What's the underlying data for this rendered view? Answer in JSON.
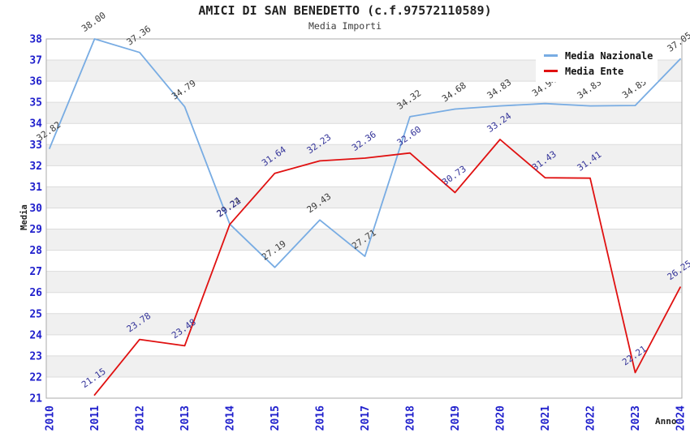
{
  "chart_data": {
    "type": "line",
    "title": "AMICI DI SAN BENEDETTO (c.f.97572110589)",
    "subtitle": "Media Importi",
    "xlabel": "Anno",
    "ylabel": "Media",
    "x": [
      2010,
      2011,
      2012,
      2013,
      2014,
      2015,
      2016,
      2017,
      2018,
      2019,
      2020,
      2021,
      2022,
      2023,
      2024
    ],
    "ylim": [
      21,
      38
    ],
    "ytick_step": 1,
    "grid": "horizontal-bands",
    "legend_position": "top-right-inside",
    "series": [
      {
        "name": "Media Nazionale",
        "color": "#78ACE3",
        "label_color": "#3A3A3A",
        "values": [
          32.82,
          38.0,
          37.36,
          34.79,
          29.24,
          27.19,
          29.43,
          27.71,
          34.32,
          34.68,
          34.83,
          34.94,
          34.83,
          34.85,
          37.05
        ]
      },
      {
        "name": "Media Ente",
        "color": "#E01111",
        "label_color": "#333399",
        "values": [
          null,
          21.15,
          23.78,
          23.48,
          29.22,
          31.64,
          32.23,
          32.36,
          32.6,
          30.73,
          33.24,
          31.43,
          31.41,
          22.21,
          26.25
        ]
      }
    ],
    "styles": {
      "band_gray": "#F0F0F0",
      "band_white": "#FFFFFF",
      "gridline": "#DCDCDC",
      "plot_border": "#ABABAB",
      "tick_label_color": "#1F1FCC",
      "title_color": "#222222",
      "subtitle_color": "#3C3C3C",
      "axis_title_color": "#222222",
      "legend_text_color": "#111111"
    }
  }
}
